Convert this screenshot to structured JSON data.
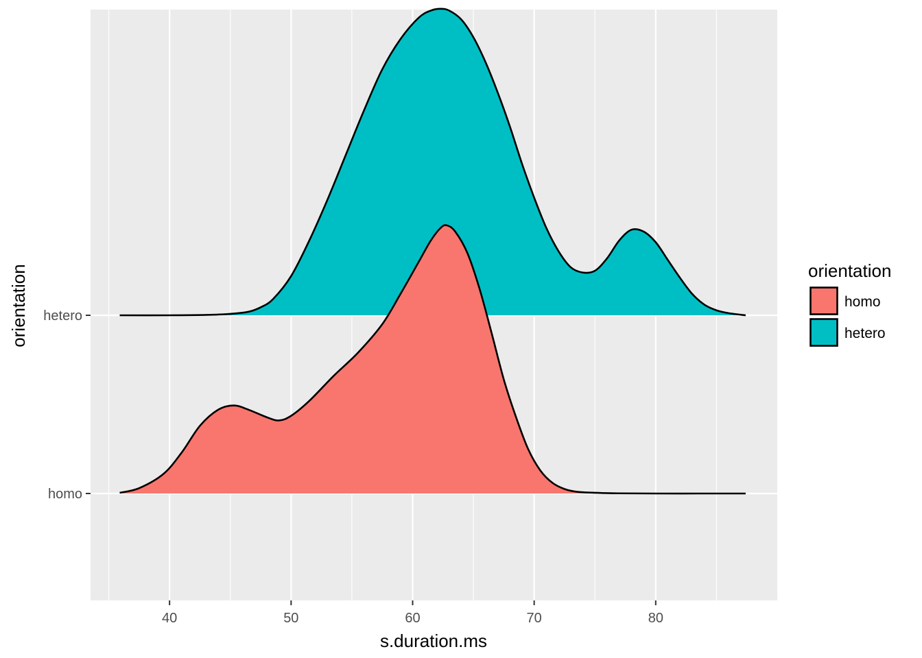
{
  "chart_data": {
    "type": "area",
    "subtype": "ridgeline-density",
    "title": "",
    "xlabel": "s.duration.ms",
    "ylabel": "orientation",
    "xlim": [
      33.5,
      90
    ],
    "x_ticks": [
      40,
      50,
      60,
      70,
      80
    ],
    "x_tick_labels": [
      "40",
      "50",
      "60",
      "70",
      "80"
    ],
    "categories": [
      "homo",
      "hetero"
    ],
    "grid": true,
    "legend": {
      "title": "orientation",
      "position": "right",
      "entries": [
        {
          "label": "homo",
          "color": "#F8766D"
        },
        {
          "label": "hetero",
          "color": "#00BFC4"
        }
      ]
    },
    "series": [
      {
        "name": "homo",
        "category": "homo",
        "color": "#F8766D",
        "x": [
          35.9,
          37.5,
          39.5,
          41.0,
          42.5,
          44.0,
          45.3,
          46.5,
          48.0,
          49.0,
          50.0,
          51.5,
          53.5,
          55.5,
          57.5,
          59.0,
          60.5,
          61.5,
          62.3,
          62.8,
          63.5,
          64.5,
          65.5,
          66.5,
          67.5,
          68.5,
          69.5,
          70.5,
          71.5,
          72.5,
          73.5,
          75.0,
          77.0,
          80.0,
          84.0,
          87.4
        ],
        "height": [
          0.004,
          0.03,
          0.11,
          0.23,
          0.38,
          0.47,
          0.494,
          0.47,
          0.428,
          0.41,
          0.436,
          0.52,
          0.66,
          0.79,
          0.95,
          1.12,
          1.3,
          1.42,
          1.49,
          1.505,
          1.47,
          1.35,
          1.15,
          0.9,
          0.64,
          0.43,
          0.25,
          0.13,
          0.06,
          0.025,
          0.01,
          0.004,
          0.001,
          0.0,
          0.0,
          0.0
        ]
      },
      {
        "name": "hetero",
        "category": "hetero",
        "color": "#00BFC4",
        "x": [
          35.9,
          40.0,
          43.0,
          45.0,
          46.5,
          47.5,
          48.5,
          50.0,
          51.5,
          53.0,
          54.5,
          56.0,
          57.5,
          59.0,
          60.5,
          61.5,
          62.3,
          63.0,
          64.0,
          65.0,
          66.0,
          67.0,
          68.0,
          69.0,
          70.0,
          71.0,
          72.0,
          73.0,
          74.0,
          75.0,
          76.0,
          77.0,
          78.0,
          79.0,
          80.0,
          81.0,
          82.0,
          83.0,
          84.0,
          85.0,
          86.0,
          87.4
        ],
        "height": [
          0.0,
          0.0,
          0.002,
          0.008,
          0.02,
          0.045,
          0.09,
          0.22,
          0.42,
          0.65,
          0.9,
          1.15,
          1.38,
          1.55,
          1.67,
          1.71,
          1.72,
          1.71,
          1.66,
          1.56,
          1.42,
          1.25,
          1.06,
          0.85,
          0.66,
          0.49,
          0.36,
          0.27,
          0.24,
          0.25,
          0.32,
          0.42,
          0.48,
          0.47,
          0.41,
          0.31,
          0.21,
          0.12,
          0.06,
          0.028,
          0.012,
          0.0
        ]
      }
    ]
  }
}
